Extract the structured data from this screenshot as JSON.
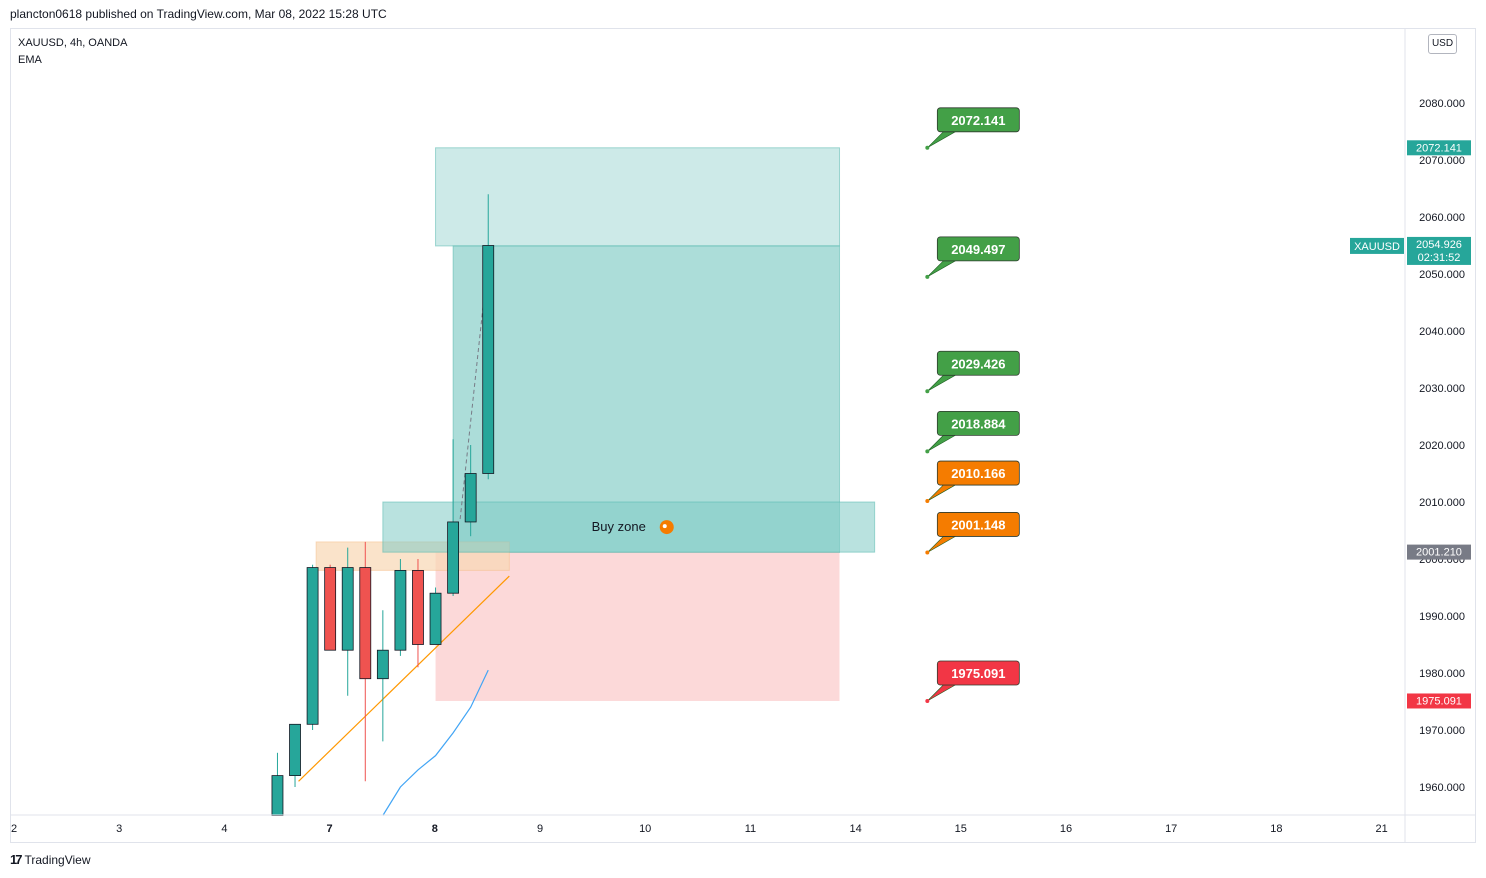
{
  "header": {
    "publisher_line": "plancton0618 published on TradingView.com, Mar 08, 2022 15:28 UTC"
  },
  "legend": {
    "symbol_line": "XAUUSD, 4h, OANDA",
    "indicator": "EMA"
  },
  "price_axis": {
    "currency_button": "USD"
  },
  "footer": {
    "brand": "TradingView",
    "brand_icon": "tradingview-logo-icon"
  },
  "chart_data": {
    "type": "candlestick",
    "title": "",
    "symbol": "XAUUSD",
    "timeframe": "4h",
    "exchange": "OANDA",
    "y_axis": {
      "ylim": [
        1955,
        2085
      ],
      "ticks": [
        1960,
        1970,
        1980,
        1990,
        2000,
        2010,
        2020,
        2030,
        2040,
        2050,
        2060,
        2070,
        2080
      ],
      "tick_labels": [
        "1960.000",
        "1970.000",
        "1980.000",
        "1990.000",
        "2000.000",
        "2010.000",
        "2020.000",
        "2030.000",
        "2040.000",
        "2050.000",
        "2060.000",
        "2070.000",
        "2080.000"
      ]
    },
    "x_axis": {
      "labels": [
        "2",
        "3",
        "4",
        "7",
        "8",
        "9",
        "10",
        "11",
        "14",
        "15",
        "16",
        "17",
        "18",
        "21"
      ],
      "bold_labels": [
        "7",
        "8"
      ],
      "xlim": [
        0,
        39
      ]
    },
    "candles": [
      {
        "t": 7.5,
        "open": 1955.0,
        "high": 1966.0,
        "low": 1955.0,
        "close": 1962.0
      },
      {
        "t": 8.0,
        "open": 1962.0,
        "high": 1971.0,
        "low": 1960.0,
        "close": 1971.0
      },
      {
        "t": 8.5,
        "open": 1971.0,
        "high": 1999.0,
        "low": 1970.0,
        "close": 1998.5
      },
      {
        "t": 9.0,
        "open": 1998.5,
        "high": 1999.0,
        "low": 1984.0,
        "close": 1984.0
      },
      {
        "t": 9.5,
        "open": 1984.0,
        "high": 2002.0,
        "low": 1976.0,
        "close": 1998.5
      },
      {
        "t": 10.0,
        "open": 1998.5,
        "high": 2003.0,
        "low": 1961.0,
        "close": 1979.0
      },
      {
        "t": 10.5,
        "open": 1979.0,
        "high": 1991.0,
        "low": 1968.0,
        "close": 1984.0
      },
      {
        "t": 11.0,
        "open": 1984.0,
        "high": 2000.0,
        "low": 1983.0,
        "close": 1998.0
      },
      {
        "t": 11.5,
        "open": 1998.0,
        "high": 2000.0,
        "low": 1981.0,
        "close": 1985.0
      },
      {
        "t": 12.0,
        "open": 1985.0,
        "high": 1995.0,
        "low": 1985.0,
        "close": 1994.0
      },
      {
        "t": 12.5,
        "open": 1994.0,
        "high": 2021.0,
        "low": 1993.5,
        "close": 2006.5
      },
      {
        "t": 13.0,
        "open": 2006.5,
        "high": 2020.0,
        "low": 2004.0,
        "close": 2015.0
      },
      {
        "t": 13.5,
        "open": 2015.0,
        "high": 2064.0,
        "low": 2014.0,
        "close": 2055.0
      }
    ],
    "ema": [
      {
        "t": 10.5,
        "value": 1955.0
      },
      {
        "t": 11.0,
        "value": 1960.0
      },
      {
        "t": 11.5,
        "value": 1963.0
      },
      {
        "t": 12.0,
        "value": 1965.5
      },
      {
        "t": 12.5,
        "value": 1969.5
      },
      {
        "t": 13.0,
        "value": 1974.0
      },
      {
        "t": 13.5,
        "value": 1980.5
      }
    ],
    "trendline": {
      "t1": 8.1,
      "p1": 1961.0,
      "t2": 14.1,
      "p2": 1997.0
    },
    "projection_line": {
      "t1": 12.7,
      "p1": 2007.0,
      "t2": 13.4,
      "p2": 2047.0
    },
    "zones": [
      {
        "name": "take-profit-zone-upper",
        "t1": 12.0,
        "t2": 23.5,
        "p_top": 2072.141,
        "p_bottom": 2054.926,
        "color": "#b2dfdb"
      },
      {
        "name": "take-profit-zone-main",
        "t1": 12.5,
        "t2": 23.5,
        "p_top": 2054.926,
        "p_bottom": 2001.148,
        "color": "#80cbc4"
      },
      {
        "name": "stop-loss-zone",
        "t1": 12.0,
        "t2": 23.5,
        "p_top": 2001.148,
        "p_bottom": 1975.091,
        "color": "#fbc5c5"
      },
      {
        "name": "prior-range-zone",
        "t1": 8.6,
        "t2": 14.1,
        "p_top": 2003.0,
        "p_bottom": 1998.0,
        "color": "#f8d7b4"
      },
      {
        "name": "buy-zone",
        "t1": 10.5,
        "t2": 24.5,
        "p_top": 2010.0,
        "p_bottom": 2001.2,
        "color": "#80cbc4",
        "label": "Buy zone"
      }
    ],
    "callouts": [
      {
        "value": "2072.141",
        "price": 2072.141,
        "color": "#43a047"
      },
      {
        "value": "2049.497",
        "price": 2049.497,
        "color": "#43a047"
      },
      {
        "value": "2029.426",
        "price": 2029.426,
        "color": "#43a047"
      },
      {
        "value": "2018.884",
        "price": 2018.884,
        "color": "#43a047"
      },
      {
        "value": "2010.166",
        "price": 2010.166,
        "color": "#f57c00"
      },
      {
        "value": "2001.148",
        "price": 2001.148,
        "color": "#f57c00"
      },
      {
        "value": "1975.091",
        "price": 1975.091,
        "color": "#f23645"
      }
    ],
    "callout_anchor_t": 26.0,
    "axis_price_labels": [
      {
        "value": "2072.141",
        "price": 2072.141,
        "color": "#26a69a"
      },
      {
        "value": "2054.926",
        "sub": "02:31:52",
        "price": 2054.926,
        "color": "#26a69a",
        "tag": "XAUUSD"
      },
      {
        "value": "2001.210",
        "price": 2001.21,
        "color": "#787b86"
      },
      {
        "value": "1975.091",
        "price": 1975.091,
        "color": "#f23645"
      }
    ],
    "colors": {
      "up": "#26a69a",
      "down": "#ef5350",
      "ema": "#42a5f5",
      "trendline": "#ff9800"
    }
  }
}
